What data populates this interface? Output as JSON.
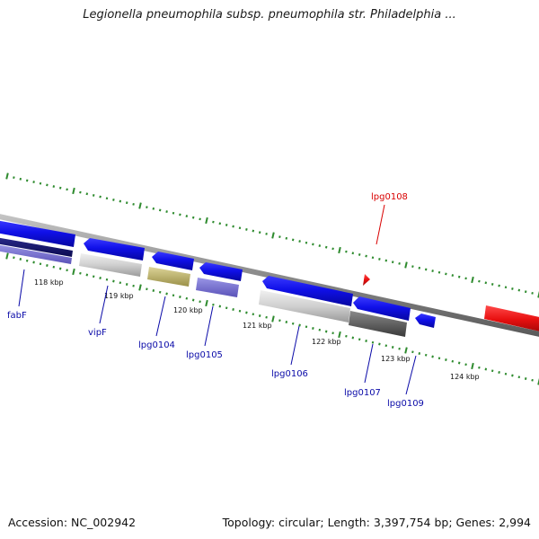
{
  "title": "Legionella pneumophila subsp. pneumophila str. Philadelphia ...",
  "footer": {
    "accession": "Accession: NC_002942",
    "summary": "Topology: circular; Length: 3,397,754 bp; Genes: 2,994"
  },
  "scale": {
    "ticks": [
      "118 kbp",
      "119 kbp",
      "120 kbp",
      "121 kbp",
      "122 kbp",
      "123 kbp",
      "124 kbp"
    ]
  },
  "genes": {
    "fabF": "fabF",
    "vipF": "vipF",
    "lpg0104": "lpg0104",
    "lpg0105": "lpg0105",
    "lpg0106": "lpg0106",
    "lpg0107": "lpg0107",
    "lpg0108": "lpg0108",
    "lpg0109": "lpg0109"
  },
  "colors": {
    "forward_gene": "#1010e8",
    "highlight_gene": "#e81010",
    "backbone": "#808080",
    "tick_marks": "#2e8b2e",
    "label_blue": "#0a0aa8",
    "label_red": "#d90000"
  }
}
